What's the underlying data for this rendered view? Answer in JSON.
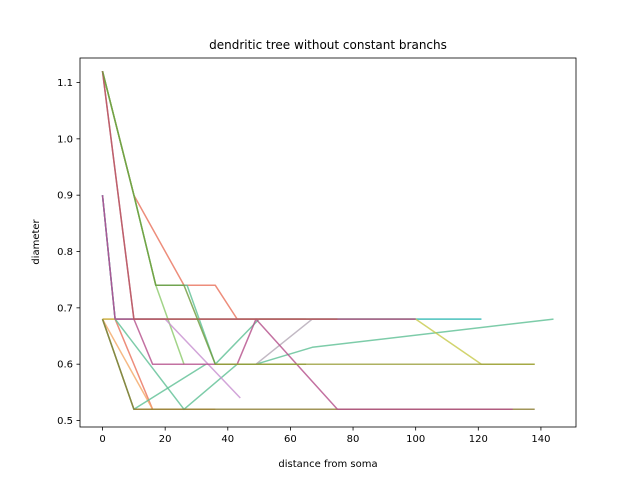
{
  "chart_data": {
    "type": "line",
    "title": "dendritic tree without constant branchs",
    "xlabel": "distance from soma",
    "ylabel": "diameter",
    "xlim": [
      -7.2,
      151.2
    ],
    "ylim": [
      0.4885,
      1.1435
    ],
    "xticks": [
      0,
      20,
      40,
      60,
      80,
      100,
      120,
      140
    ],
    "yticks": [
      0.5,
      0.6,
      0.7,
      0.8,
      0.9,
      1.0,
      1.1
    ],
    "xtick_labels": [
      "0",
      "20",
      "40",
      "60",
      "80",
      "100",
      "120",
      "140"
    ],
    "ytick_labels": [
      "0.5",
      "0.6",
      "0.7",
      "0.8",
      "0.9",
      "1.0",
      "1.1"
    ],
    "grid": false,
    "legend": "none",
    "series": [
      {
        "color": "#e8705a",
        "x": [
          0,
          10,
          26,
          36,
          43,
          49,
          65
        ],
        "y": [
          1.12,
          0.9,
          0.74,
          0.74,
          0.68,
          0.68,
          0.68
        ]
      },
      {
        "color": "#4cb3a6",
        "x": [
          0,
          4,
          20
        ],
        "y": [
          0.9,
          0.68,
          0.68
        ]
      },
      {
        "color": "#e8705a",
        "x": [
          0,
          4,
          16
        ],
        "y": [
          0.68,
          0.68,
          0.52
        ]
      },
      {
        "color": "#f4a765",
        "x": [
          0,
          10,
          16,
          36
        ],
        "y": [
          0.68,
          0.52,
          0.52,
          0.52
        ]
      },
      {
        "color": "#f4a765",
        "x": [
          0,
          16
        ],
        "y": [
          0.68,
          0.52
        ]
      },
      {
        "color": "#5cbf94",
        "x": [
          0,
          10,
          17,
          27,
          36,
          50,
          67,
          121
        ],
        "y": [
          1.12,
          0.9,
          0.74,
          0.74,
          0.6,
          0.68,
          0.68,
          0.68
        ]
      },
      {
        "color": "#5cbf94",
        "x": [
          0,
          4,
          26,
          43,
          49,
          67,
          144
        ],
        "y": [
          0.9,
          0.68,
          0.52,
          0.6,
          0.6,
          0.63,
          0.68
        ]
      },
      {
        "color": "#5cbf94",
        "x": [
          0,
          10,
          33
        ],
        "y": [
          0.68,
          0.52,
          0.6
        ]
      },
      {
        "color": "#4cc4cc",
        "x": [
          0,
          4,
          75,
          121
        ],
        "y": [
          0.9,
          0.68,
          0.68,
          0.68
        ]
      },
      {
        "color": "#8bc96a",
        "x": [
          0,
          10,
          17,
          26
        ],
        "y": [
          1.12,
          0.9,
          0.74,
          0.6
        ]
      },
      {
        "color": "#c7c94a",
        "x": [
          0,
          20,
          100,
          121,
          138
        ],
        "y": [
          0.68,
          0.68,
          0.68,
          0.6,
          0.6
        ]
      },
      {
        "color": "#b3a8b5",
        "x": [
          49,
          67,
          100
        ],
        "y": [
          0.6,
          0.68,
          0.68
        ]
      },
      {
        "color": "#c78fcf",
        "x": [
          0,
          4,
          20,
          44
        ],
        "y": [
          0.9,
          0.68,
          0.68,
          0.54
        ]
      },
      {
        "color": "#8a7a2e",
        "x": [
          0,
          10,
          36,
          138
        ],
        "y": [
          0.68,
          0.52,
          0.52,
          0.52
        ]
      },
      {
        "color": "#b44d8a",
        "x": [
          0,
          10,
          16,
          26,
          43,
          49,
          75,
          131
        ],
        "y": [
          1.12,
          0.68,
          0.6,
          0.6,
          0.6,
          0.68,
          0.52,
          0.52
        ]
      },
      {
        "color": "#a64a86",
        "x": [
          0,
          4,
          20,
          100
        ],
        "y": [
          0.9,
          0.68,
          0.68,
          0.68
        ]
      },
      {
        "color": "#bd5d5d",
        "x": [
          0,
          10,
          20,
          75
        ],
        "y": [
          1.12,
          0.68,
          0.68,
          0.68
        ]
      },
      {
        "color": "#6e9a3a",
        "x": [
          0,
          10,
          17,
          26,
          36,
          43,
          49,
          65
        ],
        "y": [
          1.12,
          0.9,
          0.74,
          0.74,
          0.6,
          0.6,
          0.6,
          0.6
        ]
      },
      {
        "color": "#9a9d3a",
        "x": [
          36,
          138
        ],
        "y": [
          0.6,
          0.6
        ]
      }
    ]
  }
}
